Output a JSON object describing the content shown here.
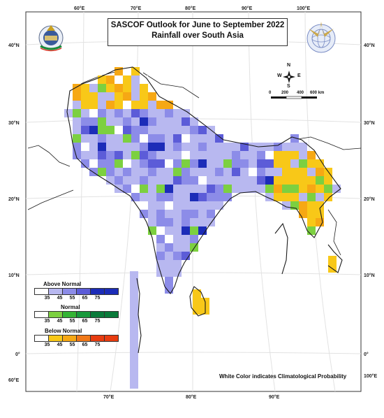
{
  "title": {
    "line1": "SASCOF Outlook for June to September 2022",
    "line2": "Rainfall over South Asia"
  },
  "axes": {
    "top_ticks": [
      "60°E",
      "70°E",
      "80°E",
      "90°E",
      "100°E"
    ],
    "bottom_ticks": [
      "70°E",
      "80°E",
      "90°E"
    ],
    "left_ticks": [
      "40°N",
      "30°N",
      "20°N",
      "10°N",
      "0°",
      "60°E"
    ],
    "right_ticks": [
      "40°N",
      "30°N",
      "20°N",
      "10°N",
      "0°",
      "100°E"
    ]
  },
  "compass": {
    "n": "N",
    "s": "S",
    "e": "E",
    "w": "W"
  },
  "scale_bar": {
    "labels": [
      "0",
      "200",
      "400",
      "600 km"
    ]
  },
  "legend": {
    "above": {
      "title": "Above Normal",
      "labels": [
        "35",
        "45",
        "55",
        "65",
        "75"
      ],
      "colors": [
        "#ffffff",
        "#b8b8f0",
        "#8c8ce8",
        "#5c5cd8",
        "#1c2cb8"
      ]
    },
    "normal": {
      "title": "Normal",
      "labels": [
        "35",
        "45",
        "55",
        "65",
        "75"
      ],
      "colors": [
        "#ffffff",
        "#7cd040",
        "#34b434",
        "#189a3c",
        "#0a7a3a"
      ]
    },
    "below": {
      "title": "Below Normal",
      "labels": [
        "35",
        "45",
        "55",
        "65",
        "75"
      ],
      "colors": [
        "#ffffff",
        "#f8c818",
        "#f6a814",
        "#f07818",
        "#e83c10"
      ]
    }
  },
  "footer_note": "White Color indicates Climatological Probability",
  "colors": {
    "frame": "#333333",
    "grid": "#e2e2e2",
    "outline": "#1a1a1a"
  }
}
